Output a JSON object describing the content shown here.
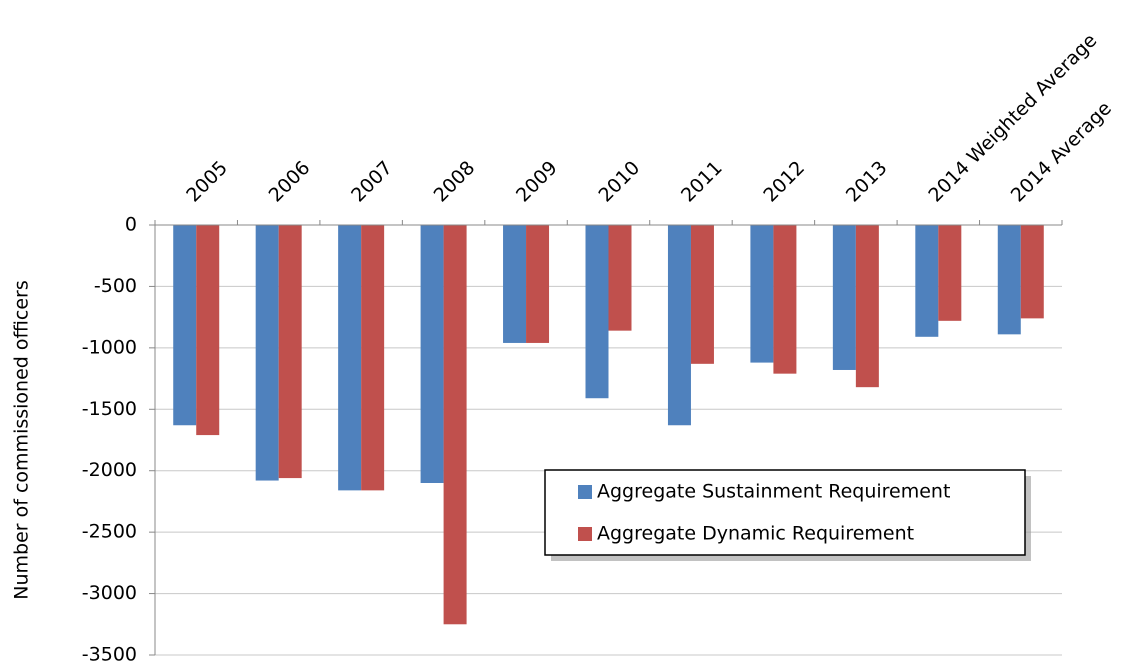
{
  "chart_data": {
    "type": "bar",
    "y_label": "Number of commissioned officers",
    "categories": [
      "2005",
      "2006",
      "2007",
      "2008",
      "2009",
      "2010",
      "2011",
      "2012",
      "2013",
      "2014 Weighted Average",
      "2014 Average"
    ],
    "series": [
      {
        "name": "Aggregate Sustainment Requirement",
        "color": "#4f81bd",
        "values": [
          -1630,
          -2080,
          -2160,
          -2100,
          -960,
          -1410,
          -1630,
          -1120,
          -1180,
          -910,
          -890
        ]
      },
      {
        "name": "Aggregate Dynamic Requirement",
        "color": "#c0504d",
        "values": [
          -1710,
          -2060,
          -2160,
          -3250,
          -960,
          -860,
          -1130,
          -1210,
          -1320,
          -780,
          -760
        ]
      }
    ],
    "ylim": [
      -3500,
      0
    ],
    "yticks": [
      0,
      -500,
      -1000,
      -1500,
      -2000,
      -2500,
      -3000,
      -3500
    ],
    "grid": true
  }
}
